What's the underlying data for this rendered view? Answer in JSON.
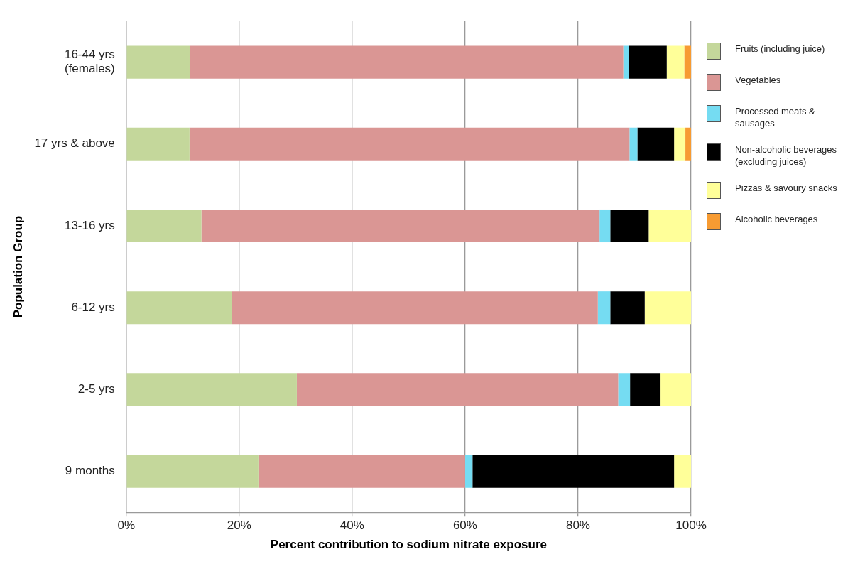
{
  "chart_data": {
    "type": "bar",
    "orientation": "horizontal",
    "stacked": true,
    "xlabel": "Percent contribution to sodium nitrate exposure",
    "ylabel": "Population Group",
    "categories": [
      "16-44 yrs (females)",
      "17 yrs & above",
      "13-16 yrs",
      "6-12 yrs",
      "2-5 yrs",
      "9 months"
    ],
    "series": [
      {
        "name": "Fruits (including juice)",
        "color": "#c4d79b",
        "values": [
          11.3,
          11.2,
          13.3,
          18.7,
          30.2,
          23.4
        ]
      },
      {
        "name": "Vegetables",
        "color": "#da9694",
        "values": [
          76.7,
          77.9,
          70.5,
          64.8,
          56.9,
          36.6
        ]
      },
      {
        "name": "Processed meats & sausages",
        "color": "#75dcf2",
        "values": [
          1.0,
          1.4,
          1.9,
          2.2,
          2.1,
          1.3
        ]
      },
      {
        "name": "Non-alcoholic beverages (excluding juices)",
        "color": "#000000",
        "values": [
          6.7,
          6.5,
          6.8,
          6.1,
          5.4,
          35.7
        ]
      },
      {
        "name": "Pizzas & savoury snacks",
        "color": "#ffff99",
        "values": [
          3.1,
          2.0,
          7.5,
          8.2,
          5.4,
          3.0
        ]
      },
      {
        "name": "Alcoholic beverages",
        "color": "#f79b32",
        "values": [
          1.2,
          1.0,
          null,
          null,
          null,
          null
        ]
      }
    ],
    "xlim": [
      0,
      100
    ],
    "xticks": [
      {
        "value": 0,
        "label": "0%"
      },
      {
        "value": 20,
        "label": "20%"
      },
      {
        "value": 40,
        "label": "40%"
      },
      {
        "value": 60,
        "label": "60%"
      },
      {
        "value": 80,
        "label": "80%"
      },
      {
        "value": 100,
        "label": "100%"
      }
    ],
    "grid": "x",
    "legend": "right"
  }
}
